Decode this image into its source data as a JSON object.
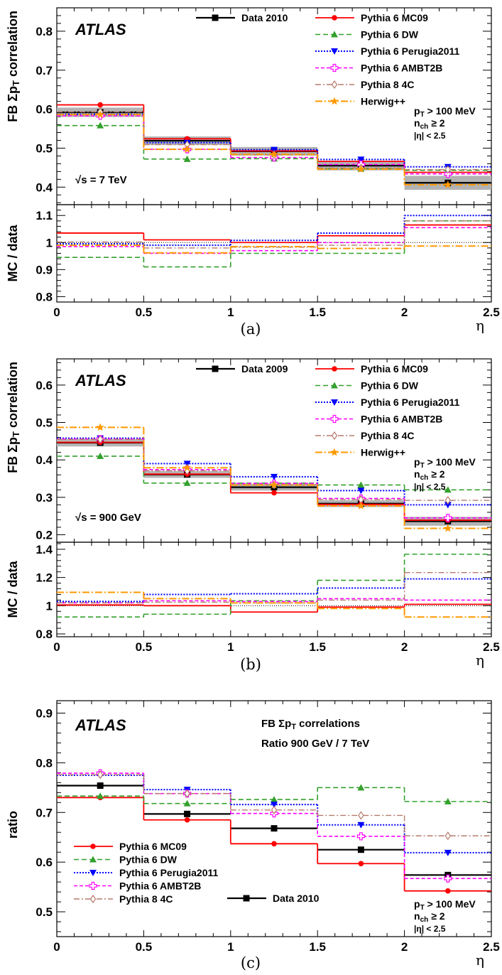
{
  "captions": [
    "(a)",
    "(b)",
    "(c)"
  ],
  "x_axis": {
    "label": "η",
    "ticks": [
      0,
      0.5,
      1,
      1.5,
      2,
      2.5
    ],
    "tick_labels": [
      "0",
      "0.5",
      "1",
      "1.5",
      "2",
      "2.5"
    ]
  },
  "colors": {
    "data": "#000000",
    "mc09": "#ff0000",
    "dw": "#33a02c",
    "perugia": "#0000ff",
    "ambt2b": "#ff00ff",
    "p84c": "#b57a6c",
    "herwig": "#ff9900",
    "band": "#b3b3b3"
  },
  "chart_data": [
    {
      "id": "a",
      "type": "line",
      "caption": "(a)",
      "experiment": "ATLAS",
      "energy_label": "√s = 7 TeV",
      "ylabel": "FB Σp_T correlation",
      "ylim": [
        0.355,
        0.86
      ],
      "yticks": [
        0.4,
        0.5,
        0.6,
        0.7,
        0.8
      ],
      "ratio_ylabel": "MC / data",
      "ratio_ylim": [
        0.78,
        1.14
      ],
      "ratio_yticks": [
        0.8,
        0.9,
        1,
        1.1
      ],
      "cuts": [
        "p_T > 100 MeV",
        "n_ch ≥ 2",
        "|η| < 2.5"
      ],
      "legend": {
        "data": "Data 2010",
        "mc": [
          "Pythia 6 MC09",
          "Pythia 6 DW",
          "Pythia 6 Perugia2011",
          "Pythia 6 AMBT2B",
          "Pythia 8 4C",
          "Herwig++"
        ]
      },
      "bin_edges": [
        0,
        0.5,
        1,
        1.5,
        2,
        2.5
      ],
      "data": {
        "name": "Data 2010",
        "values": [
          0.592,
          0.519,
          0.492,
          0.455,
          0.411
        ],
        "band": [
          0.012,
          0.011,
          0.011,
          0.012,
          0.018
        ]
      },
      "series": [
        {
          "name": "Pythia 6 MC09",
          "key": "mc09",
          "values": [
            0.611,
            0.524,
            0.493,
            0.466,
            0.438
          ]
        },
        {
          "name": "Pythia 6 DW",
          "key": "dw",
          "values": [
            0.558,
            0.472,
            0.473,
            0.447,
            0.443
          ]
        },
        {
          "name": "Pythia 6 Perugia2011",
          "key": "perugia",
          "values": [
            0.587,
            0.514,
            0.496,
            0.471,
            0.452
          ]
        },
        {
          "name": "Pythia 6 AMBT2B",
          "key": "ambt2b",
          "values": [
            0.583,
            0.497,
            0.476,
            0.458,
            0.434
          ]
        },
        {
          "name": "Pythia 8 4C",
          "key": "p84c",
          "values": [
            0.593,
            0.509,
            0.483,
            0.449,
            0.445
          ]
        },
        {
          "name": "Herwig++",
          "key": "herwig",
          "values": [
            0.586,
            0.497,
            0.484,
            0.446,
            0.406
          ]
        }
      ],
      "ratio_series": [
        {
          "key": "mc09",
          "values": [
            1.035,
            1.01,
            1.0,
            1.025,
            1.065
          ]
        },
        {
          "key": "dw",
          "values": [
            0.945,
            0.91,
            0.96,
            0.96,
            1.08
          ]
        },
        {
          "key": "perugia",
          "values": [
            0.995,
            0.99,
            1.008,
            1.035,
            1.1
          ]
        },
        {
          "key": "ambt2b",
          "values": [
            0.985,
            0.96,
            0.97,
            1.0,
            1.055
          ]
        },
        {
          "key": "p84c",
          "values": [
            1.002,
            0.98,
            0.983,
            0.99,
            1.08
          ]
        },
        {
          "key": "herwig",
          "values": [
            0.99,
            0.962,
            0.985,
            0.978,
            0.987
          ]
        }
      ]
    },
    {
      "id": "b",
      "type": "line",
      "caption": "(b)",
      "experiment": "ATLAS",
      "energy_label": "√s = 900 GeV",
      "ylabel": "FB Σp_T correlation",
      "ylim": [
        0.18,
        0.67
      ],
      "yticks": [
        0.2,
        0.3,
        0.4,
        0.5,
        0.6
      ],
      "ratio_ylabel": "MC / data",
      "ratio_ylim": [
        0.78,
        1.45
      ],
      "ratio_yticks": [
        0.8,
        1,
        1.2,
        1.4
      ],
      "cuts": [
        "p_T > 100 MeV",
        "n_ch ≥ 2",
        "|η| < 2.5"
      ],
      "legend": {
        "data": "Data 2009",
        "mc": [
          "Pythia 6 MC09",
          "Pythia 6 DW",
          "Pythia 6 Perugia2011",
          "Pythia 6 AMBT2B",
          "Pythia 8 4C",
          "Herwig++"
        ]
      },
      "bin_edges": [
        0,
        0.5,
        1,
        1.5,
        2,
        2.5
      ],
      "data": {
        "name": "Data 2009",
        "values": [
          0.446,
          0.361,
          0.327,
          0.283,
          0.236
        ],
        "band": [
          0.01,
          0.009,
          0.009,
          0.009,
          0.012
        ]
      },
      "series": [
        {
          "name": "Pythia 6 MC09",
          "key": "mc09",
          "values": [
            0.447,
            0.362,
            0.312,
            0.281,
            0.239
          ]
        },
        {
          "name": "Pythia 6 DW",
          "key": "dw",
          "values": [
            0.41,
            0.338,
            0.338,
            0.333,
            0.32
          ]
        },
        {
          "name": "Pythia 6 Perugia2011",
          "key": "perugia",
          "values": [
            0.458,
            0.39,
            0.355,
            0.318,
            0.28
          ]
        },
        {
          "name": "Pythia 6 AMBT2B",
          "key": "ambt2b",
          "values": [
            0.456,
            0.374,
            0.337,
            0.297,
            0.245
          ]
        },
        {
          "name": "Pythia 8 4C",
          "key": "p84c",
          "values": [
            0.455,
            0.371,
            0.333,
            0.294,
            0.292
          ]
        },
        {
          "name": "Herwig++",
          "key": "herwig",
          "values": [
            0.487,
            0.379,
            0.333,
            0.277,
            0.217
          ]
        }
      ],
      "ratio_series": [
        {
          "key": "mc09",
          "values": [
            1.005,
            1.0,
            0.955,
            0.99,
            1.01
          ]
        },
        {
          "key": "dw",
          "values": [
            0.92,
            0.94,
            1.035,
            1.18,
            1.365
          ]
        },
        {
          "key": "perugia",
          "values": [
            1.03,
            1.08,
            1.085,
            1.125,
            1.19
          ]
        },
        {
          "key": "ambt2b",
          "values": [
            1.02,
            1.035,
            1.03,
            1.05,
            1.04
          ]
        },
        {
          "key": "p84c",
          "values": [
            1.02,
            1.025,
            1.02,
            1.04,
            1.235
          ]
        },
        {
          "key": "herwig",
          "values": [
            1.095,
            1.05,
            1.02,
            0.98,
            0.92
          ]
        }
      ]
    },
    {
      "id": "c",
      "type": "line",
      "caption": "(c)",
      "experiment": "ATLAS",
      "title": "FB Σp_T correlations",
      "subtitle": "Ratio 900 GeV / 7 TeV",
      "ylabel": "ratio",
      "ylim": [
        0.45,
        0.925
      ],
      "yticks": [
        0.5,
        0.6,
        0.7,
        0.8,
        0.9
      ],
      "cuts": [
        "p_T > 100 MeV",
        "n_ch ≥ 2",
        "|η| < 2.5"
      ],
      "legend": {
        "data": "Data 2010",
        "mc": [
          "Pythia 6 MC09",
          "Pythia 6 DW",
          "Pythia 6 Perugia2011",
          "Pythia 6 AMBT2B",
          "Pythia 8 4C"
        ]
      },
      "bin_edges": [
        0,
        0.5,
        1,
        1.5,
        2,
        2.5
      ],
      "data": {
        "name": "Data 2010",
        "values": [
          0.754,
          0.697,
          0.668,
          0.625,
          0.574
        ],
        "band": [
          0,
          0,
          0,
          0,
          0
        ]
      },
      "series": [
        {
          "name": "Pythia 6 MC09",
          "key": "mc09",
          "values": [
            0.73,
            0.685,
            0.637,
            0.597,
            0.542
          ]
        },
        {
          "name": "Pythia 6 DW",
          "key": "dw",
          "values": [
            0.733,
            0.718,
            0.726,
            0.75,
            0.722
          ]
        },
        {
          "name": "Pythia 6 Perugia2011",
          "key": "perugia",
          "values": [
            0.775,
            0.746,
            0.716,
            0.675,
            0.619
          ]
        },
        {
          "name": "Pythia 6 AMBT2B",
          "key": "ambt2b",
          "values": [
            0.779,
            0.738,
            0.698,
            0.652,
            0.567
          ]
        },
        {
          "name": "Pythia 8 4C",
          "key": "p84c",
          "values": [
            0.776,
            0.738,
            0.705,
            0.694,
            0.653
          ]
        }
      ]
    }
  ]
}
